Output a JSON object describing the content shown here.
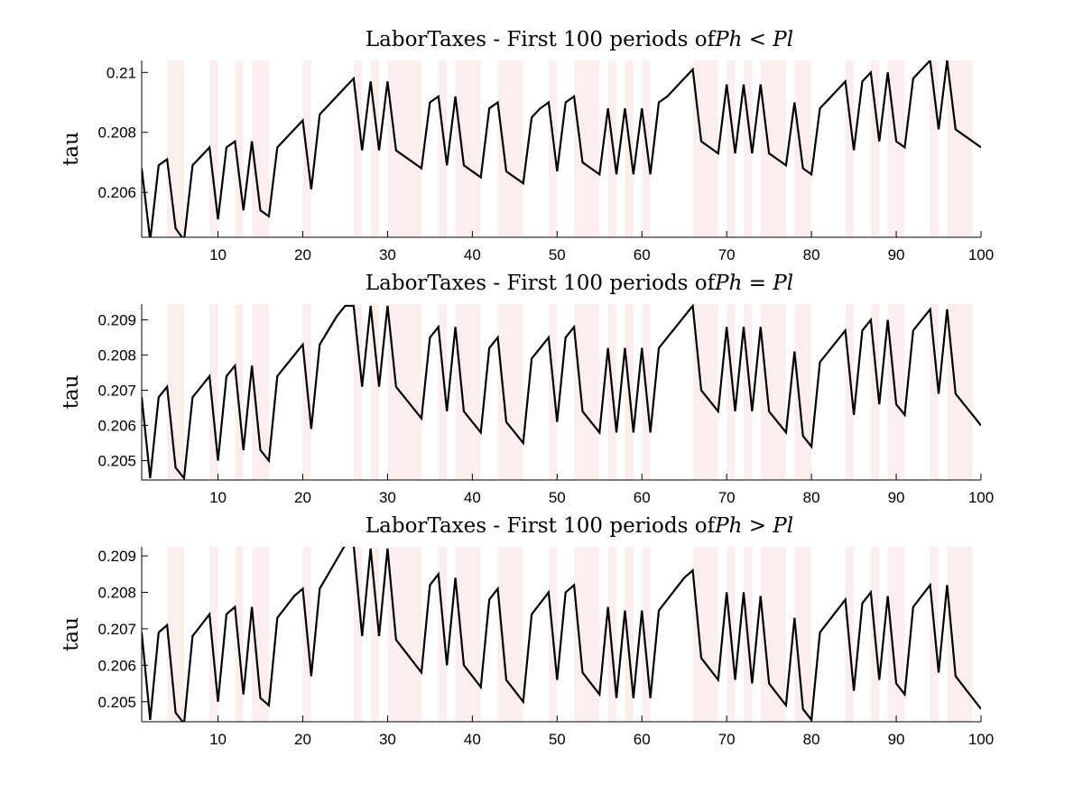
{
  "chart_data": [
    {
      "type": "line",
      "title": "LaborTaxes - First 100 periods of",
      "title_math": "Ph < Pl",
      "xlabel": "",
      "ylabel": "tau",
      "xlim": [
        1,
        100
      ],
      "ylim": [
        0.2045,
        0.2104
      ],
      "xticks": [
        10,
        20,
        30,
        40,
        50,
        60,
        70,
        80,
        90,
        100
      ],
      "yticks": [
        0.206,
        0.208,
        0.21
      ],
      "ytick_labels": [
        "0.206",
        "0.208",
        "0.21"
      ],
      "grid": false,
      "line_color": "#000000",
      "shade_color": "#fdeeee",
      "shaded_regions": [
        [
          4,
          6
        ],
        [
          9,
          10
        ],
        [
          12,
          13
        ],
        [
          14,
          16
        ],
        [
          20,
          21
        ],
        [
          26,
          27
        ],
        [
          28,
          29
        ],
        [
          30,
          34
        ],
        [
          36,
          37
        ],
        [
          38,
          41
        ],
        [
          43,
          46
        ],
        [
          49,
          50
        ],
        [
          52,
          55
        ],
        [
          56,
          57
        ],
        [
          58,
          59
        ],
        [
          60,
          61
        ],
        [
          66,
          69
        ],
        [
          70,
          71
        ],
        [
          72,
          73
        ],
        [
          74,
          77
        ],
        [
          78,
          80
        ],
        [
          84,
          85
        ],
        [
          87,
          88
        ],
        [
          89,
          91
        ],
        [
          94,
          95
        ],
        [
          96,
          99
        ]
      ],
      "x": [
        1,
        2,
        3,
        4,
        5,
        6,
        7,
        8,
        9,
        10,
        11,
        12,
        13,
        14,
        15,
        16,
        17,
        18,
        19,
        20,
        21,
        22,
        23,
        24,
        25,
        26,
        27,
        28,
        29,
        30,
        31,
        32,
        33,
        34,
        35,
        36,
        37,
        38,
        39,
        40,
        41,
        42,
        43,
        44,
        45,
        46,
        47,
        48,
        49,
        50,
        51,
        52,
        53,
        54,
        55,
        56,
        57,
        58,
        59,
        60,
        61,
        62,
        63,
        64,
        65,
        66,
        67,
        68,
        69,
        70,
        71,
        72,
        73,
        74,
        75,
        76,
        77,
        78,
        79,
        80,
        81,
        82,
        83,
        84,
        85,
        86,
        87,
        88,
        89,
        90,
        91,
        92,
        93,
        94,
        95,
        96,
        97,
        98,
        99,
        100
      ],
      "values": [
        0.2068,
        0.2044,
        0.2069,
        0.2071,
        0.2048,
        0.2044,
        0.2069,
        0.2072,
        0.2075,
        0.2051,
        0.2075,
        0.2077,
        0.2054,
        0.2077,
        0.2054,
        0.2052,
        0.2075,
        0.2078,
        0.2081,
        0.2084,
        0.2061,
        0.2086,
        0.2089,
        0.2092,
        0.2095,
        0.2098,
        0.2074,
        0.2097,
        0.2074,
        0.2097,
        0.2074,
        0.2072,
        0.207,
        0.2068,
        0.209,
        0.2092,
        0.2069,
        0.2092,
        0.2069,
        0.2067,
        0.2065,
        0.2088,
        0.209,
        0.2067,
        0.2065,
        0.2063,
        0.2085,
        0.2088,
        0.209,
        0.2067,
        0.209,
        0.2092,
        0.207,
        0.2068,
        0.2066,
        0.2088,
        0.2066,
        0.2088,
        0.2066,
        0.2088,
        0.2066,
        0.209,
        0.2092,
        0.2095,
        0.2098,
        0.2101,
        0.2077,
        0.2075,
        0.2073,
        0.2096,
        0.2073,
        0.2096,
        0.2073,
        0.2096,
        0.2073,
        0.2071,
        0.2069,
        0.209,
        0.2068,
        0.2066,
        0.2088,
        0.2091,
        0.2094,
        0.2097,
        0.2074,
        0.2097,
        0.21,
        0.2077,
        0.21,
        0.2077,
        0.2075,
        0.2098,
        0.2101,
        0.2104,
        0.2081,
        0.2104,
        0.2081,
        0.2079,
        0.2077,
        0.2075
      ]
    },
    {
      "type": "line",
      "title": "LaborTaxes - First 100 periods of",
      "title_math": "Ph = Pl",
      "xlabel": "",
      "ylabel": "tau",
      "xlim": [
        1,
        100
      ],
      "ylim": [
        0.20445,
        0.20945
      ],
      "xticks": [
        10,
        20,
        30,
        40,
        50,
        60,
        70,
        80,
        90,
        100
      ],
      "yticks": [
        0.205,
        0.206,
        0.207,
        0.208,
        0.209
      ],
      "ytick_labels": [
        "0.205",
        "0.206",
        "0.207",
        "0.208",
        "0.209"
      ],
      "grid": false,
      "line_color": "#000000",
      "shade_color": "#fdeeee",
      "shaded_regions": [
        [
          4,
          6
        ],
        [
          9,
          10
        ],
        [
          12,
          13
        ],
        [
          14,
          16
        ],
        [
          20,
          21
        ],
        [
          26,
          27
        ],
        [
          28,
          29
        ],
        [
          30,
          34
        ],
        [
          36,
          37
        ],
        [
          38,
          41
        ],
        [
          43,
          46
        ],
        [
          49,
          50
        ],
        [
          52,
          55
        ],
        [
          56,
          57
        ],
        [
          58,
          59
        ],
        [
          60,
          61
        ],
        [
          66,
          69
        ],
        [
          70,
          71
        ],
        [
          72,
          73
        ],
        [
          74,
          77
        ],
        [
          78,
          80
        ],
        [
          84,
          85
        ],
        [
          87,
          88
        ],
        [
          89,
          91
        ],
        [
          94,
          95
        ],
        [
          96,
          99
        ]
      ],
      "x": [
        1,
        2,
        3,
        4,
        5,
        6,
        7,
        8,
        9,
        10,
        11,
        12,
        13,
        14,
        15,
        16,
        17,
        18,
        19,
        20,
        21,
        22,
        23,
        24,
        25,
        26,
        27,
        28,
        29,
        30,
        31,
        32,
        33,
        34,
        35,
        36,
        37,
        38,
        39,
        40,
        41,
        42,
        43,
        44,
        45,
        46,
        47,
        48,
        49,
        50,
        51,
        52,
        53,
        54,
        55,
        56,
        57,
        58,
        59,
        60,
        61,
        62,
        63,
        64,
        65,
        66,
        67,
        68,
        69,
        70,
        71,
        72,
        73,
        74,
        75,
        76,
        77,
        78,
        79,
        80,
        81,
        82,
        83,
        84,
        85,
        86,
        87,
        88,
        89,
        90,
        91,
        92,
        93,
        94,
        95,
        96,
        97,
        98,
        99,
        100
      ],
      "values": [
        0.2068,
        0.2045,
        0.2068,
        0.2071,
        0.2048,
        0.2045,
        0.2068,
        0.2071,
        0.2074,
        0.205,
        0.2074,
        0.2077,
        0.2053,
        0.2077,
        0.2053,
        0.205,
        0.2074,
        0.2077,
        0.208,
        0.2083,
        0.2059,
        0.2083,
        0.2087,
        0.2091,
        0.2094,
        0.2094,
        0.2071,
        0.2094,
        0.2071,
        0.2094,
        0.2071,
        0.2068,
        0.2065,
        0.2062,
        0.2085,
        0.2088,
        0.2064,
        0.2088,
        0.2064,
        0.2061,
        0.2058,
        0.2082,
        0.2085,
        0.2061,
        0.2058,
        0.2055,
        0.2079,
        0.2082,
        0.2085,
        0.2061,
        0.2085,
        0.2088,
        0.2064,
        0.2061,
        0.2058,
        0.2082,
        0.2058,
        0.2082,
        0.2058,
        0.2082,
        0.2058,
        0.2082,
        0.2085,
        0.2088,
        0.2091,
        0.2094,
        0.207,
        0.2067,
        0.2064,
        0.2088,
        0.2064,
        0.2088,
        0.2064,
        0.2088,
        0.2064,
        0.2061,
        0.2058,
        0.2081,
        0.2057,
        0.2054,
        0.2078,
        0.2081,
        0.2084,
        0.2087,
        0.2063,
        0.2087,
        0.209,
        0.2066,
        0.209,
        0.2066,
        0.2063,
        0.2087,
        0.209,
        0.2093,
        0.2069,
        0.2093,
        0.2069,
        0.2066,
        0.2063,
        0.206
      ]
    },
    {
      "type": "line",
      "title": "LaborTaxes - First 100 periods of",
      "title_math": "Ph > Pl",
      "xlabel": "",
      "ylabel": "tau",
      "xlim": [
        1,
        100
      ],
      "ylim": [
        0.20445,
        0.20925
      ],
      "xticks": [
        10,
        20,
        30,
        40,
        50,
        60,
        70,
        80,
        90,
        100
      ],
      "yticks": [
        0.205,
        0.206,
        0.207,
        0.208,
        0.209
      ],
      "ytick_labels": [
        "0.205",
        "0.206",
        "0.207",
        "0.208",
        "0.209"
      ],
      "grid": false,
      "line_color": "#000000",
      "shade_color": "#fdeeee",
      "shaded_regions": [
        [
          4,
          6
        ],
        [
          9,
          10
        ],
        [
          12,
          13
        ],
        [
          14,
          16
        ],
        [
          20,
          21
        ],
        [
          26,
          27
        ],
        [
          28,
          29
        ],
        [
          30,
          34
        ],
        [
          36,
          37
        ],
        [
          38,
          41
        ],
        [
          43,
          46
        ],
        [
          49,
          50
        ],
        [
          52,
          55
        ],
        [
          56,
          57
        ],
        [
          58,
          59
        ],
        [
          60,
          61
        ],
        [
          66,
          69
        ],
        [
          70,
          71
        ],
        [
          72,
          73
        ],
        [
          74,
          77
        ],
        [
          78,
          80
        ],
        [
          84,
          85
        ],
        [
          87,
          88
        ],
        [
          89,
          91
        ],
        [
          94,
          95
        ],
        [
          96,
          99
        ]
      ],
      "x": [
        1,
        2,
        3,
        4,
        5,
        6,
        7,
        8,
        9,
        10,
        11,
        12,
        13,
        14,
        15,
        16,
        17,
        18,
        19,
        20,
        21,
        22,
        23,
        24,
        25,
        26,
        27,
        28,
        29,
        30,
        31,
        32,
        33,
        34,
        35,
        36,
        37,
        38,
        39,
        40,
        41,
        42,
        43,
        44,
        45,
        46,
        47,
        48,
        49,
        50,
        51,
        52,
        53,
        54,
        55,
        56,
        57,
        58,
        59,
        60,
        61,
        62,
        63,
        64,
        65,
        66,
        67,
        68,
        69,
        70,
        71,
        72,
        73,
        74,
        75,
        76,
        77,
        78,
        79,
        80,
        81,
        82,
        83,
        84,
        85,
        86,
        87,
        88,
        89,
        90,
        91,
        92,
        93,
        94,
        95,
        96,
        97,
        98,
        99,
        100
      ],
      "values": [
        0.2069,
        0.2045,
        0.2069,
        0.2071,
        0.2047,
        0.2044,
        0.2068,
        0.2071,
        0.2074,
        0.205,
        0.2074,
        0.2076,
        0.2052,
        0.2076,
        0.2051,
        0.2049,
        0.2073,
        0.2076,
        0.2079,
        0.2081,
        0.2057,
        0.2081,
        0.2085,
        0.2089,
        0.2093,
        0.2093,
        0.2068,
        0.2092,
        0.2068,
        0.2092,
        0.2067,
        0.2064,
        0.2061,
        0.2058,
        0.2082,
        0.2085,
        0.206,
        0.2084,
        0.206,
        0.2057,
        0.2054,
        0.2078,
        0.2081,
        0.2056,
        0.2053,
        0.205,
        0.2074,
        0.2077,
        0.208,
        0.2056,
        0.208,
        0.2082,
        0.2058,
        0.2055,
        0.2052,
        0.2076,
        0.2051,
        0.2075,
        0.2051,
        0.2075,
        0.2051,
        0.2075,
        0.2078,
        0.2081,
        0.2084,
        0.2086,
        0.2062,
        0.2059,
        0.2056,
        0.208,
        0.2056,
        0.208,
        0.2055,
        0.2079,
        0.2055,
        0.2052,
        0.2049,
        0.2073,
        0.2048,
        0.2045,
        0.2069,
        0.2072,
        0.2075,
        0.2078,
        0.2053,
        0.2077,
        0.208,
        0.2056,
        0.2079,
        0.2055,
        0.2052,
        0.2076,
        0.2079,
        0.2082,
        0.2058,
        0.2082,
        0.2057,
        0.2054,
        0.2051,
        0.2048
      ]
    }
  ]
}
